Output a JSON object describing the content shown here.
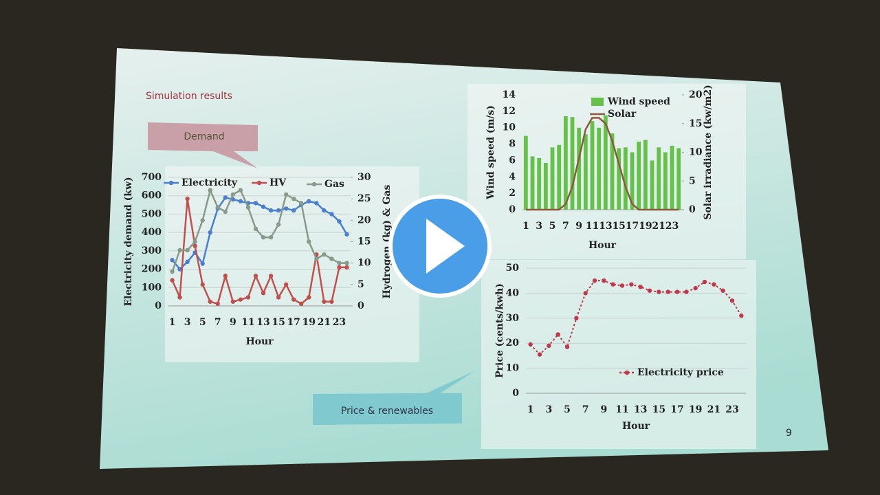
{
  "slide": {
    "title": "Simulation results",
    "callouts": [
      "Demand",
      "Price & renewables"
    ],
    "page_number": "9"
  },
  "chart_data": [
    {
      "type": "line",
      "x_label": "Hour",
      "y_label": "Electricity demand (kw)",
      "y2_label": "Hydrogen (kg) & Gas",
      "categories": [
        1,
        null,
        3,
        null,
        5,
        null,
        7,
        null,
        9,
        null,
        11,
        null,
        13,
        null,
        15,
        null,
        17,
        null,
        19,
        null,
        21,
        null,
        23,
        null
      ],
      "ylim": [
        0,
        700
      ],
      "yticks": [
        0,
        100,
        200,
        300,
        400,
        500,
        600,
        700
      ],
      "y2lim": [
        0,
        30
      ],
      "y2ticks": [
        0,
        5,
        10,
        15,
        20,
        25,
        30
      ],
      "grid": true,
      "series": [
        {
          "name": "Electricity",
          "color": "#4a7fd0",
          "values": [
            250,
            200,
            240,
            290,
            230,
            400,
            530,
            590,
            580,
            570,
            560,
            560,
            540,
            520,
            520,
            530,
            520,
            550,
            570,
            560,
            520,
            500,
            460,
            390
          ]
        },
        {
          "name": "HV",
          "color": "#c0504d",
          "axis": "y2",
          "values": [
            6,
            2,
            25,
            14,
            5,
            1,
            0.5,
            7,
            1,
            1.5,
            2,
            7,
            3,
            7,
            2,
            5,
            1.5,
            0.5,
            2,
            12,
            1,
            1,
            9,
            9
          ]
        },
        {
          "name": "Gas",
          "color": "#8a9a8a",
          "axis": "y2",
          "values": [
            8,
            13,
            13,
            15,
            20,
            27,
            23,
            22,
            26,
            27,
            23,
            18,
            16,
            16,
            19,
            26,
            25,
            24,
            15,
            11,
            12,
            11,
            10,
            10
          ]
        }
      ]
    },
    {
      "type": "bar",
      "x_label": "Hour",
      "y_label": "Wind speed (m/s)",
      "y2_label": "Solar irradiance (kw/m2)",
      "categories": [
        1,
        null,
        3,
        null,
        5,
        null,
        7,
        null,
        9,
        null,
        11,
        null,
        13,
        null,
        15,
        null,
        17,
        null,
        19,
        null,
        21,
        null,
        23,
        null
      ],
      "ylim": [
        0,
        14
      ],
      "yticks": [
        0,
        2,
        4,
        6,
        8,
        10,
        12,
        14
      ],
      "y2lim": [
        0,
        20
      ],
      "y2ticks": [
        0,
        5,
        10,
        15,
        20
      ],
      "grid": false,
      "series": [
        {
          "name": "Wind speed",
          "color": "#66c14a",
          "type": "bar",
          "values": [
            9,
            6.5,
            6.3,
            5.7,
            7.6,
            7.9,
            11.4,
            11.3,
            10,
            9.2,
            10.8,
            10,
            11.5,
            9.3,
            7.5,
            7.6,
            7,
            8.3,
            8.5,
            6,
            7.6,
            7,
            7.8,
            7.5
          ]
        },
        {
          "name": "Solar",
          "color": "#8b5a3c",
          "type": "line",
          "axis": "y2",
          "values": [
            0,
            0,
            0,
            0,
            0,
            0,
            1,
            4,
            9,
            14,
            16,
            16,
            15,
            12,
            8,
            4,
            1,
            0,
            0,
            0,
            0,
            0,
            0,
            0
          ]
        }
      ]
    },
    {
      "type": "line",
      "x_label": "Hour",
      "y_label": "Price (cents/kwh)",
      "categories": [
        1,
        null,
        3,
        null,
        5,
        null,
        7,
        null,
        9,
        null,
        11,
        null,
        13,
        null,
        15,
        null,
        17,
        null,
        19,
        null,
        21,
        null,
        23,
        null
      ],
      "ylim": [
        0,
        50
      ],
      "yticks": [
        0,
        10,
        20,
        30,
        40,
        50
      ],
      "grid": true,
      "series": [
        {
          "name": "Electricity price",
          "color": "#c0394a",
          "dashed": true,
          "values": [
            19.5,
            15.5,
            19,
            23.5,
            18.5,
            30,
            40,
            45,
            45,
            43.5,
            43,
            43.5,
            42.5,
            41,
            40.5,
            40.5,
            40.5,
            40.5,
            42,
            44.5,
            43.5,
            41,
            37,
            31
          ]
        }
      ]
    }
  ]
}
